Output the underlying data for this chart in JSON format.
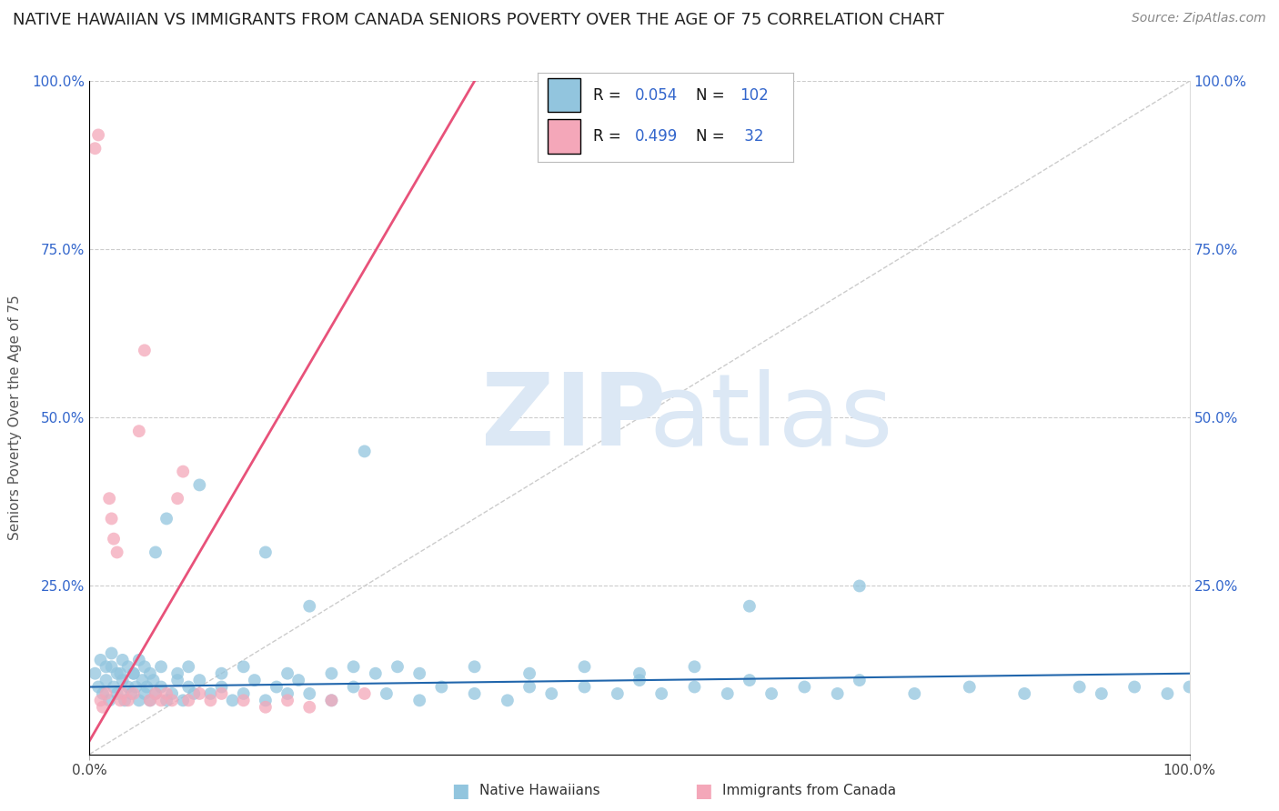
{
  "title": "NATIVE HAWAIIAN VS IMMIGRANTS FROM CANADA SENIORS POVERTY OVER THE AGE OF 75 CORRELATION CHART",
  "source": "Source: ZipAtlas.com",
  "ylabel": "Seniors Poverty Over the Age of 75",
  "xlim": [
    0,
    1.0
  ],
  "ylim": [
    0,
    1.0
  ],
  "color_blue": "#92c5de",
  "color_pink": "#f4a7b9",
  "line_color_blue": "#2166ac",
  "line_color_pink": "#e8527a",
  "diagonal_color": "#cccccc",
  "legend_R1": "0.054",
  "legend_N1": "102",
  "legend_R2": "0.499",
  "legend_N2": "32",
  "legend_label1": "Native Hawaiians",
  "legend_label2": "Immigrants from Canada",
  "title_fontsize": 13,
  "source_fontsize": 10,
  "blue_x": [
    0.005,
    0.008,
    0.01,
    0.012,
    0.015,
    0.018,
    0.02,
    0.022,
    0.025,
    0.028,
    0.03,
    0.032,
    0.035,
    0.038,
    0.04,
    0.042,
    0.045,
    0.048,
    0.05,
    0.052,
    0.055,
    0.058,
    0.06,
    0.065,
    0.07,
    0.075,
    0.08,
    0.085,
    0.09,
    0.095,
    0.1,
    0.11,
    0.12,
    0.13,
    0.14,
    0.15,
    0.16,
    0.17,
    0.18,
    0.19,
    0.2,
    0.22,
    0.24,
    0.25,
    0.27,
    0.3,
    0.32,
    0.35,
    0.38,
    0.4,
    0.42,
    0.45,
    0.48,
    0.5,
    0.52,
    0.55,
    0.58,
    0.6,
    0.62,
    0.65,
    0.68,
    0.7,
    0.75,
    0.8,
    0.85,
    0.9,
    0.92,
    0.95,
    0.98,
    1.0,
    0.015,
    0.02,
    0.025,
    0.03,
    0.035,
    0.04,
    0.045,
    0.05,
    0.055,
    0.06,
    0.065,
    0.07,
    0.08,
    0.09,
    0.1,
    0.12,
    0.14,
    0.16,
    0.18,
    0.2,
    0.22,
    0.24,
    0.26,
    0.28,
    0.3,
    0.35,
    0.4,
    0.45,
    0.5,
    0.55,
    0.6,
    0.7
  ],
  "blue_y": [
    0.12,
    0.1,
    0.14,
    0.09,
    0.11,
    0.08,
    0.13,
    0.1,
    0.09,
    0.12,
    0.11,
    0.08,
    0.1,
    0.09,
    0.12,
    0.1,
    0.08,
    0.11,
    0.09,
    0.1,
    0.08,
    0.11,
    0.09,
    0.1,
    0.08,
    0.09,
    0.11,
    0.08,
    0.1,
    0.09,
    0.11,
    0.09,
    0.1,
    0.08,
    0.09,
    0.11,
    0.08,
    0.1,
    0.09,
    0.11,
    0.09,
    0.08,
    0.1,
    0.45,
    0.09,
    0.08,
    0.1,
    0.09,
    0.08,
    0.1,
    0.09,
    0.1,
    0.09,
    0.11,
    0.09,
    0.1,
    0.09,
    0.11,
    0.09,
    0.1,
    0.09,
    0.11,
    0.09,
    0.1,
    0.09,
    0.1,
    0.09,
    0.1,
    0.09,
    0.1,
    0.13,
    0.15,
    0.12,
    0.14,
    0.13,
    0.12,
    0.14,
    0.13,
    0.12,
    0.3,
    0.13,
    0.35,
    0.12,
    0.13,
    0.4,
    0.12,
    0.13,
    0.3,
    0.12,
    0.22,
    0.12,
    0.13,
    0.12,
    0.13,
    0.12,
    0.13,
    0.12,
    0.13,
    0.12,
    0.13,
    0.22,
    0.25
  ],
  "pink_x": [
    0.005,
    0.008,
    0.01,
    0.012,
    0.015,
    0.018,
    0.02,
    0.022,
    0.025,
    0.028,
    0.03,
    0.035,
    0.04,
    0.045,
    0.05,
    0.055,
    0.06,
    0.065,
    0.07,
    0.075,
    0.08,
    0.085,
    0.09,
    0.1,
    0.11,
    0.12,
    0.14,
    0.16,
    0.18,
    0.2,
    0.22,
    0.25
  ],
  "pink_y": [
    0.9,
    0.92,
    0.08,
    0.07,
    0.09,
    0.38,
    0.35,
    0.32,
    0.3,
    0.08,
    0.09,
    0.08,
    0.09,
    0.48,
    0.6,
    0.08,
    0.09,
    0.08,
    0.09,
    0.08,
    0.38,
    0.42,
    0.08,
    0.09,
    0.08,
    0.09,
    0.08,
    0.07,
    0.08,
    0.07,
    0.08,
    0.09
  ],
  "pink_slope": 2.8,
  "pink_intercept": 0.02,
  "blue_slope": 0.02,
  "blue_intercept": 0.1
}
